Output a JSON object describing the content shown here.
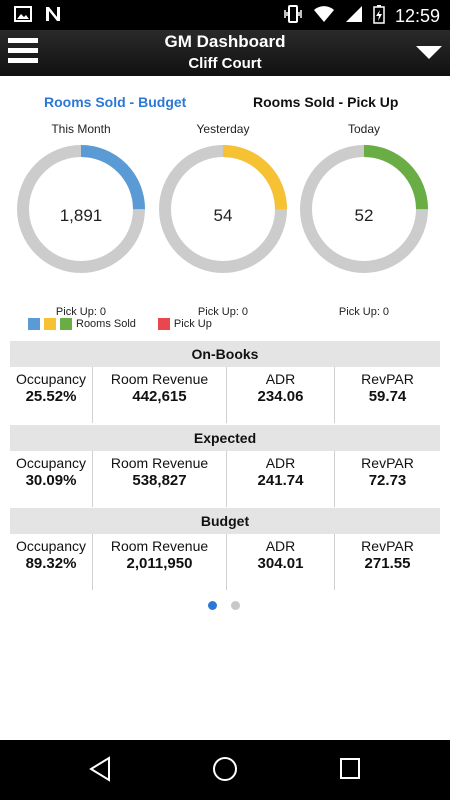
{
  "status_bar": {
    "time": "12:59"
  },
  "header": {
    "title": "GM Dashboard",
    "subtitle": "Cliff Court"
  },
  "tabs": [
    {
      "label": "Rooms Sold - Budget",
      "active": true
    },
    {
      "label": "Rooms Sold - Pick Up",
      "active": false
    }
  ],
  "gauges": [
    {
      "label": "This Month",
      "value": "1,891",
      "fraction": 0.25,
      "color": "#5b9bd5",
      "pickup": "Pick Up: 0"
    },
    {
      "label": "Yesterday",
      "value": "54",
      "fraction": 0.25,
      "color": "#f6c234",
      "pickup": "Pick Up: 0"
    },
    {
      "label": "Today",
      "value": "52",
      "fraction": 0.25,
      "color": "#6aad45",
      "pickup": "Pick Up: 0"
    }
  ],
  "legend": {
    "rooms_sold_label": "Rooms Sold",
    "pick_up_label": "Pick Up",
    "colors": {
      "blue": "#5b9bd5",
      "yellow": "#f6c234",
      "green": "#6aad45",
      "red": "#e8474e"
    }
  },
  "sections": [
    {
      "title": "On-Books",
      "metrics": [
        {
          "label": "Occupancy",
          "value": "25.52%"
        },
        {
          "label": "Room Revenue",
          "value": "442,615"
        },
        {
          "label": "ADR",
          "value": "234.06"
        },
        {
          "label": "RevPAR",
          "value": "59.74"
        }
      ]
    },
    {
      "title": "Expected",
      "metrics": [
        {
          "label": "Occupancy",
          "value": "30.09%"
        },
        {
          "label": "Room Revenue",
          "value": "538,827"
        },
        {
          "label": "ADR",
          "value": "241.74"
        },
        {
          "label": "RevPAR",
          "value": "72.73"
        }
      ]
    },
    {
      "title": "Budget",
      "metrics": [
        {
          "label": "Occupancy",
          "value": "89.32%"
        },
        {
          "label": "Room Revenue",
          "value": "2,011,950"
        },
        {
          "label": "ADR",
          "value": "304.01"
        },
        {
          "label": "RevPAR",
          "value": "271.55"
        }
      ]
    }
  ],
  "pager": {
    "active_color": "#2b78d8",
    "inactive_color": "#c8c8c8"
  }
}
